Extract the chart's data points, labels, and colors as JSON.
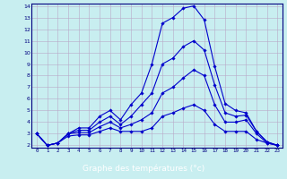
{
  "xlabel": "Graphe des températures (°c)",
  "bg_color": "#c8eef0",
  "grid_color": "#b8a8c8",
  "line_color": "#0000cc",
  "xlabel_bg": "#000080",
  "xlabel_fg": "#ffffff",
  "xlim": [
    -0.5,
    23.5
  ],
  "ylim": [
    1.8,
    14.2
  ],
  "yticks": [
    2,
    3,
    4,
    5,
    6,
    7,
    8,
    9,
    10,
    11,
    12,
    13,
    14
  ],
  "xticks": [
    0,
    1,
    2,
    3,
    4,
    5,
    6,
    7,
    8,
    9,
    10,
    11,
    12,
    13,
    14,
    15,
    16,
    17,
    18,
    19,
    20,
    21,
    22,
    23
  ],
  "series": [
    [
      3.0,
      2.0,
      2.2,
      3.0,
      3.5,
      3.5,
      4.5,
      5.0,
      4.2,
      5.5,
      6.5,
      9.0,
      12.5,
      13.0,
      13.8,
      14.0,
      12.8,
      8.8,
      5.6,
      5.0,
      4.8,
      3.2,
      2.3,
      2.0
    ],
    [
      3.0,
      2.0,
      2.2,
      3.0,
      3.3,
      3.3,
      4.0,
      4.5,
      3.8,
      4.5,
      5.5,
      6.5,
      9.0,
      9.5,
      10.5,
      11.0,
      10.2,
      7.2,
      4.8,
      4.5,
      4.6,
      3.2,
      2.3,
      2.0
    ],
    [
      3.0,
      2.0,
      2.2,
      3.0,
      3.1,
      3.1,
      3.6,
      4.0,
      3.5,
      3.8,
      4.2,
      4.8,
      6.5,
      7.0,
      7.8,
      8.5,
      8.0,
      5.5,
      4.0,
      4.0,
      4.2,
      3.0,
      2.2,
      2.0
    ],
    [
      3.0,
      2.0,
      2.2,
      2.8,
      2.9,
      2.9,
      3.2,
      3.5,
      3.2,
      3.2,
      3.2,
      3.5,
      4.5,
      4.8,
      5.2,
      5.5,
      5.0,
      3.8,
      3.2,
      3.2,
      3.2,
      2.5,
      2.2,
      2.0
    ]
  ]
}
